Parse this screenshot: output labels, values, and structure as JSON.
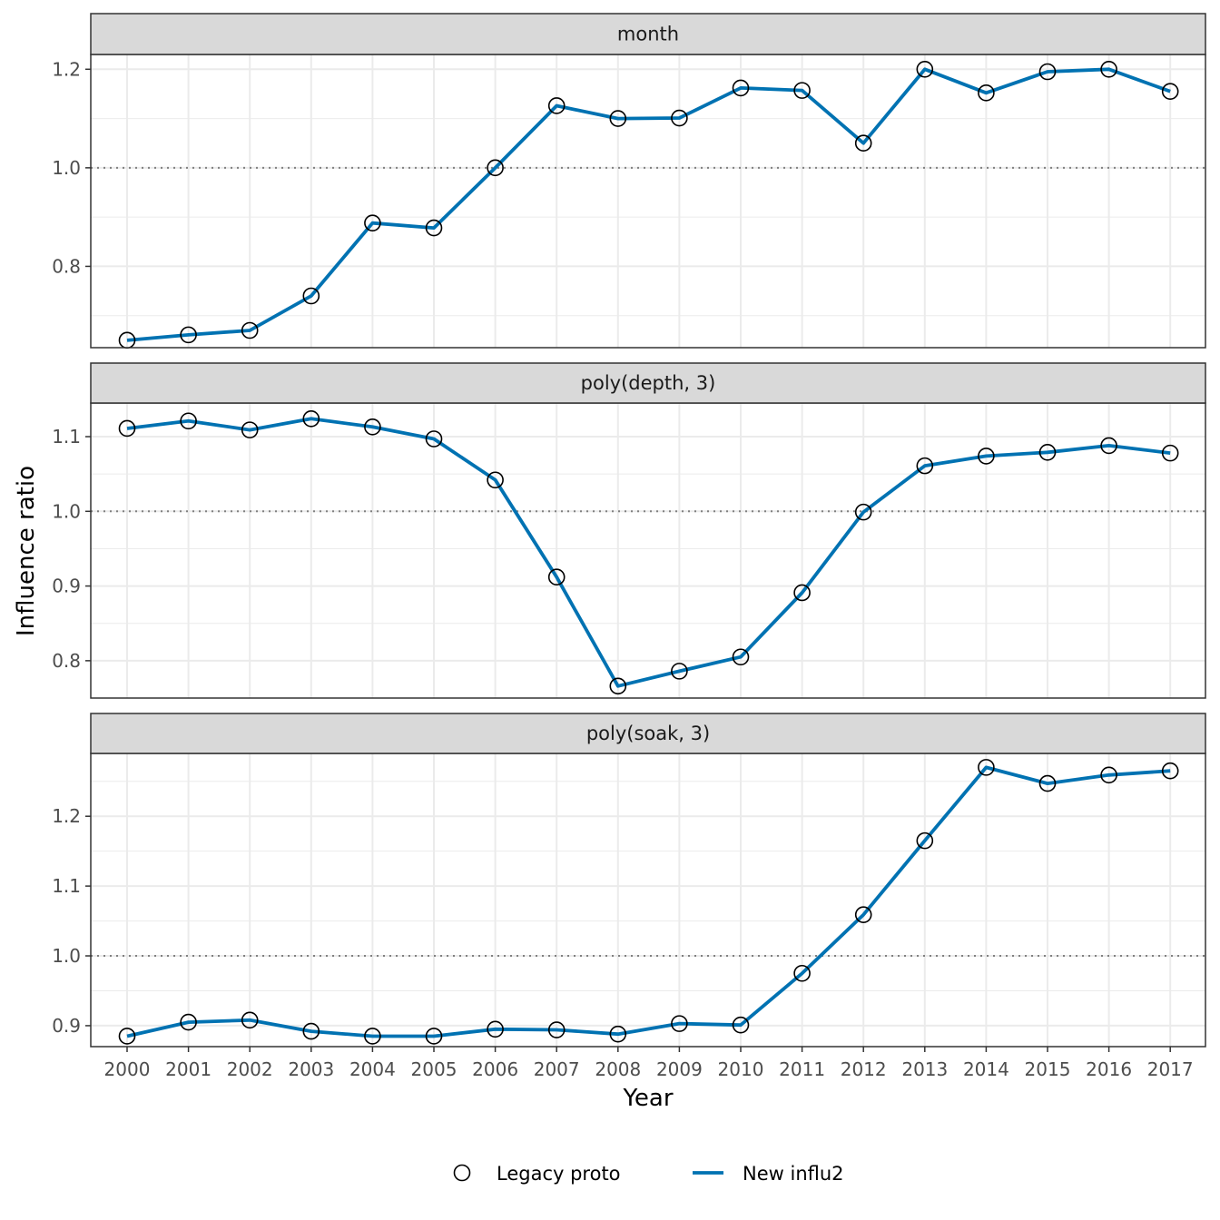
{
  "chart_data": {
    "type": "line",
    "xlabel": "Year",
    "ylabel": "Influence ratio",
    "reference_line": 1.0,
    "grid": true,
    "legend_position": "bottom",
    "x": [
      2000,
      2001,
      2002,
      2003,
      2004,
      2005,
      2006,
      2007,
      2008,
      2009,
      2010,
      2011,
      2012,
      2013,
      2014,
      2015,
      2016,
      2017
    ],
    "legend": [
      {
        "name": "Legacy proto",
        "marker": "open-circle"
      },
      {
        "name": "New influ2",
        "marker": "line"
      }
    ],
    "colors": {
      "line": "#0072b2",
      "marker": "#000000",
      "strip_fill": "#d9d9d9",
      "grid": "#ebebeb",
      "reference": "#808080"
    },
    "panels": [
      {
        "name": "month",
        "ylim": [
          0.635,
          1.23
        ],
        "yticks": [
          0.8,
          1.0,
          1.2
        ],
        "tick_labels": [
          "0.8",
          "1.0",
          "1.2"
        ],
        "minor_ticks": [
          0.7,
          0.9,
          1.1
        ],
        "values": [
          0.65,
          0.661,
          0.67,
          0.74,
          0.888,
          0.878,
          1.0,
          1.126,
          1.1,
          1.101,
          1.162,
          1.157,
          1.05,
          1.2,
          1.152,
          1.195,
          1.2,
          1.155
        ]
      },
      {
        "name": "poly(depth, 3)",
        "ylim": [
          0.75,
          1.145
        ],
        "yticks": [
          0.8,
          0.9,
          1.0,
          1.1
        ],
        "tick_labels": [
          "0.8",
          "0.9",
          "1.0",
          "1.1"
        ],
        "minor_ticks": [
          0.85,
          0.95,
          1.05
        ],
        "values": [
          1.111,
          1.121,
          1.109,
          1.124,
          1.113,
          1.097,
          1.042,
          0.912,
          0.766,
          0.786,
          0.805,
          0.891,
          0.999,
          1.061,
          1.074,
          1.079,
          1.088,
          1.078
        ]
      },
      {
        "name": "poly(soak, 3)",
        "ylim": [
          0.87,
          1.29
        ],
        "yticks": [
          0.9,
          1.0,
          1.1,
          1.2
        ],
        "tick_labels": [
          "0.9",
          "1.0",
          "1.1",
          "1.2"
        ],
        "minor_ticks": [
          0.95,
          1.05,
          1.15,
          1.25
        ],
        "values": [
          0.885,
          0.905,
          0.908,
          0.892,
          0.885,
          0.885,
          0.895,
          0.894,
          0.888,
          0.903,
          0.901,
          0.975,
          1.059,
          1.165,
          1.27,
          1.247,
          1.259,
          1.265
        ]
      }
    ]
  }
}
